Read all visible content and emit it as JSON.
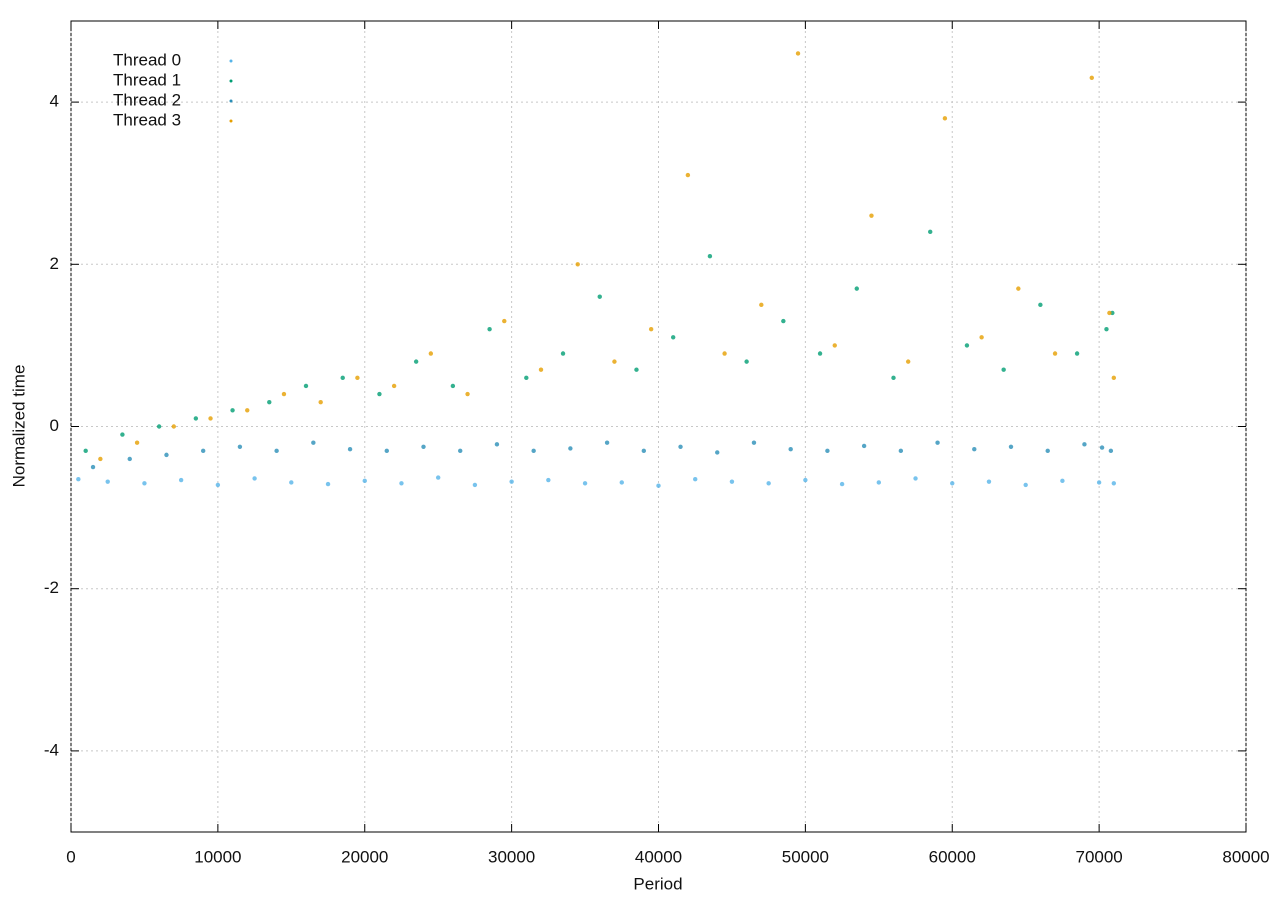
{
  "chart_data": {
    "type": "scatter",
    "x_label": "Period",
    "y_label": "Normalized time",
    "xlim": [
      0,
      80000
    ],
    "ylim": [
      -5,
      5
    ],
    "xticks": [
      0,
      10000,
      20000,
      30000,
      40000,
      50000,
      60000,
      70000,
      80000
    ],
    "yticks": [
      -4,
      -2,
      0,
      2,
      4
    ],
    "grid": true,
    "legend": "top-left",
    "series": [
      {
        "name": "Thread 0",
        "color": "#56b4e9",
        "x": [
          500,
          2500,
          5000,
          7500,
          10000,
          12500,
          15000,
          17500,
          20000,
          22500,
          25000,
          27500,
          30000,
          32500,
          35000,
          37500,
          40000,
          42500,
          45000,
          47500,
          50000,
          52500,
          55000,
          57500,
          60000,
          62500,
          65000,
          67500,
          70000,
          71000
        ],
        "values": [
          -0.65,
          -0.68,
          -0.7,
          -0.66,
          -0.72,
          -0.64,
          -0.69,
          -0.71,
          -0.67,
          -0.7,
          -0.63,
          -0.72,
          -0.68,
          -0.66,
          -0.7,
          -0.69,
          -0.73,
          -0.65,
          -0.68,
          -0.7,
          -0.66,
          -0.71,
          -0.69,
          -0.64,
          -0.7,
          -0.68,
          -0.72,
          -0.67,
          -0.69,
          -0.7
        ]
      },
      {
        "name": "Thread 1",
        "color": "#009e73",
        "x": [
          1000,
          3500,
          6000,
          8500,
          11000,
          13500,
          16000,
          18500,
          21000,
          23500,
          26000,
          28500,
          31000,
          33500,
          36000,
          38500,
          41000,
          43500,
          46000,
          48500,
          51000,
          53500,
          56000,
          58500,
          61000,
          63500,
          66000,
          68500,
          70500,
          70900
        ],
        "values": [
          -0.3,
          -0.1,
          0,
          0.1,
          0.2,
          0.3,
          0.5,
          0.6,
          0.4,
          0.8,
          0.5,
          1.2,
          0.6,
          0.9,
          1.6,
          0.7,
          1.1,
          2.1,
          0.8,
          1.3,
          0.9,
          1.7,
          0.6,
          2.4,
          1.0,
          0.7,
          1.5,
          0.9,
          1.2,
          1.4
        ]
      },
      {
        "name": "Thread 2",
        "color": "#2a8fb8",
        "x": [
          1500,
          4000,
          6500,
          9000,
          11500,
          14000,
          16500,
          19000,
          21500,
          24000,
          26500,
          29000,
          31500,
          34000,
          36500,
          39000,
          41500,
          44000,
          46500,
          49000,
          51500,
          54000,
          56500,
          59000,
          61500,
          64000,
          66500,
          69000,
          70200,
          70800
        ],
        "values": [
          -0.5,
          -0.4,
          -0.35,
          -0.3,
          -0.25,
          -0.3,
          -0.2,
          -0.28,
          -0.3,
          -0.25,
          -0.3,
          -0.22,
          -0.3,
          -0.27,
          -0.2,
          -0.3,
          -0.25,
          -0.32,
          -0.2,
          -0.28,
          -0.3,
          -0.24,
          -0.3,
          -0.2,
          -0.28,
          -0.25,
          -0.3,
          -0.22,
          -0.26,
          -0.3
        ]
      },
      {
        "name": "Thread 3",
        "color": "#e69f00",
        "x": [
          2000,
          4500,
          7000,
          9500,
          12000,
          14500,
          17000,
          19500,
          22000,
          24500,
          27000,
          29500,
          32000,
          34500,
          37000,
          39500,
          42000,
          44500,
          47000,
          49500,
          52000,
          54500,
          57000,
          59500,
          62000,
          64500,
          67000,
          69500,
          70700,
          71000
        ],
        "values": [
          -0.4,
          -0.2,
          0,
          0.1,
          0.2,
          0.4,
          0.3,
          0.6,
          0.5,
          0.9,
          0.4,
          1.3,
          0.7,
          2.0,
          0.8,
          1.2,
          3.1,
          0.9,
          1.5,
          4.6,
          1.0,
          2.6,
          0.8,
          3.8,
          1.1,
          1.7,
          0.9,
          4.3,
          1.4,
          0.6
        ]
      }
    ]
  }
}
